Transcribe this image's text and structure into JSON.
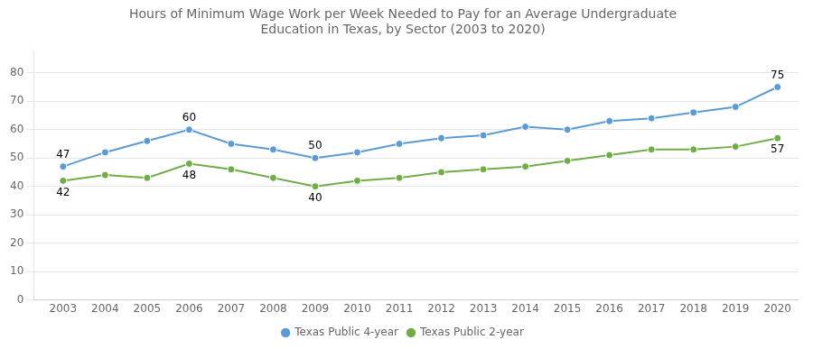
{
  "chart_data": {
    "type": "line",
    "title": "Hours of Minimum Wage Work per Week Needed to Pay for an Average Undergraduate\nEducation in Texas, by Sector (2003 to 2020)",
    "x": [
      2003,
      2004,
      2005,
      2006,
      2007,
      2008,
      2009,
      2010,
      2011,
      2012,
      2013,
      2014,
      2015,
      2016,
      2017,
      2018,
      2019,
      2020
    ],
    "series": [
      {
        "name": "Texas Public 4-year",
        "color": "#5b9bd5",
        "marker": "circle",
        "line_style": "solid",
        "values": [
          47,
          52,
          56,
          60,
          55,
          53,
          50,
          52,
          55,
          57,
          58,
          61,
          60,
          63,
          64,
          66,
          68,
          75
        ]
      },
      {
        "name": "Texas Public 2-year",
        "color": "#70ad47",
        "marker": "circle",
        "line_style": "solid",
        "values": [
          42,
          44,
          43,
          48,
          46,
          43,
          40,
          42,
          43,
          45,
          46,
          47,
          49,
          51,
          53,
          53,
          54,
          57
        ]
      }
    ],
    "xlim": [
      2002.3,
      2020.5
    ],
    "xticks": [
      2003,
      2004,
      2005,
      2006,
      2007,
      2008,
      2009,
      2010,
      2011,
      2012,
      2013,
      2014,
      2015,
      2016,
      2017,
      2018,
      2019,
      2020
    ],
    "ylim": [
      0,
      88
    ],
    "yticks": [
      0,
      10,
      20,
      30,
      40,
      50,
      60,
      70,
      80
    ],
    "grid": "y",
    "legend": "bottom",
    "annotations": [
      {
        "x": 2003,
        "y": 47,
        "text": "47"
      },
      {
        "x": 2006,
        "y": 60,
        "text": "60"
      },
      {
        "x": 2009,
        "y": 50,
        "text": "50"
      },
      {
        "x": 2020,
        "y": 75,
        "text": "75"
      },
      {
        "x": 2003,
        "y": 42,
        "text": "42"
      },
      {
        "x": 2006,
        "y": 48,
        "text": "48"
      },
      {
        "x": 2009,
        "y": 40,
        "text": "40"
      },
      {
        "x": 2020,
        "y": 57,
        "text": "57"
      }
    ]
  }
}
